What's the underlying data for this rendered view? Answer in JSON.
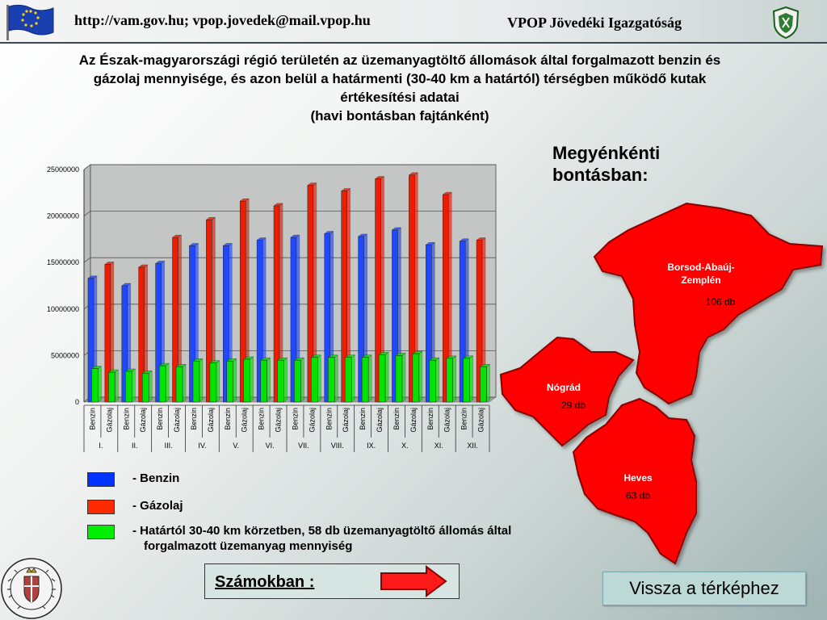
{
  "header": {
    "url_text": "http://vam.gov.hu; vpop.jovedek@mail.vpop.hu",
    "org_text": "VPOP Jövedéki Igazgatóság"
  },
  "title": {
    "line1": "Az Észak-magyarországi régió területén az üzemanyagtöltő állomások által forgalmazott benzin és",
    "line2": "gázolaj mennyisége, és azon belül a határmenti (30-40 km a határtól) térségben működő kutak",
    "line3": "értékesítési adatai",
    "line4": "(havi bontásban fajtánként)"
  },
  "side_title": {
    "line1": "Megyénkénti",
    "line2": "bontásban:"
  },
  "map": {
    "counties": [
      {
        "name": "Borsod-Abaúj-Zemplén",
        "name_line1": "Borsod-Abaúj-",
        "name_line2": "Zemplén",
        "count": "106 db"
      },
      {
        "name": "Nógrád",
        "count": "29 db"
      },
      {
        "name": "Heves",
        "count": "63 db"
      }
    ],
    "fill_color": "#ff0000"
  },
  "legend": {
    "items": [
      {
        "label": "Benzin",
        "prefix": "- ",
        "color": "#0033ff"
      },
      {
        "label": "Gázolaj",
        "prefix": "- ",
        "color": "#ff2a00"
      },
      {
        "label": "Határtól 30-40 km körzetben, 58 db üzemanyagtöltő állomás által",
        "label2": "forgalmazott üzemanyag mennyiség",
        "prefix": "- ",
        "color": "#00ee00"
      }
    ]
  },
  "numbers_button": {
    "label": "Számokban :"
  },
  "back_button": {
    "label": "Vissza a térképhez"
  },
  "chart_data": {
    "type": "bar",
    "ylim": [
      0,
      25000000
    ],
    "yticks": [
      "0",
      "5000000",
      "10000000",
      "15000000",
      "20000000",
      "25000000"
    ],
    "ytick_values": [
      0,
      5000000,
      10000000,
      15000000,
      20000000,
      25000000
    ],
    "grid": true,
    "months": [
      "I.",
      "II.",
      "III.",
      "IV.",
      "V.",
      "VI.",
      "VII.",
      "VIII.",
      "IX.",
      "X.",
      "XI.",
      "XII."
    ],
    "fuel_labels": [
      "Benzin",
      "Gázolaj"
    ],
    "colors": {
      "benzin": "#1f48ff",
      "gazolaj": "#ee1c00",
      "border": "#00e400"
    },
    "series": [
      {
        "name": "Benzin",
        "values": [
          13300000,
          12500000,
          14900000,
          16800000,
          16800000,
          17400000,
          17700000,
          18100000,
          17800000,
          18500000,
          16900000,
          17300000
        ]
      },
      {
        "name": "Gázolaj",
        "values": [
          14800000,
          14500000,
          17700000,
          19600000,
          21600000,
          21100000,
          23300000,
          22700000,
          24000000,
          24400000,
          22300000,
          17400000
        ]
      },
      {
        "name": "Határtól 30-40 km körzetben, 58 db üzemanyagtöltő állomás által forgalmazott üzemanyag mennyiség",
        "benzin": [
          3600000,
          3300000,
          3900000,
          4400000,
          4400000,
          4500000,
          4500000,
          4800000,
          4800000,
          5000000,
          4500000,
          4700000
        ],
        "gazolaj": [
          3200000,
          3100000,
          3800000,
          4200000,
          4600000,
          4500000,
          4800000,
          4800000,
          5100000,
          5200000,
          4700000,
          3800000
        ]
      }
    ]
  }
}
